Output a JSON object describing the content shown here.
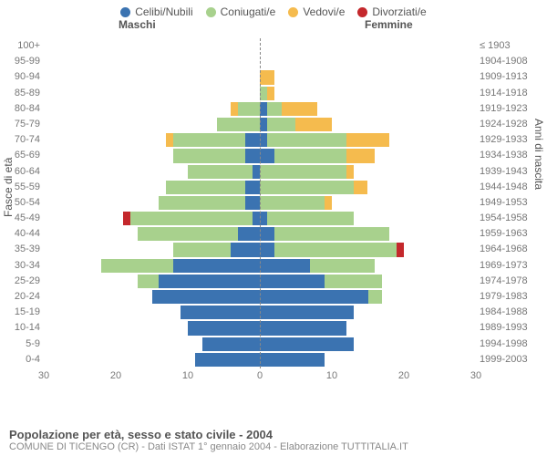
{
  "legend": [
    {
      "label": "Celibi/Nubili",
      "color": "#3b73b1"
    },
    {
      "label": "Coniugati/e",
      "color": "#a8d18d"
    },
    {
      "label": "Vedovi/e",
      "color": "#f5bb4e"
    },
    {
      "label": "Divorziati/e",
      "color": "#c4282c"
    }
  ],
  "headers": {
    "male": "Maschi",
    "female": "Femmine"
  },
  "axis_titles": {
    "left": "Fasce di età",
    "right": "Anni di nascita"
  },
  "x_axis": {
    "max": 30,
    "ticks": [
      30,
      20,
      10,
      0,
      10,
      20,
      30
    ],
    "signed": [
      -30,
      -20,
      -10,
      0,
      10,
      20,
      30
    ]
  },
  "colors": {
    "celibi": "#3b73b1",
    "coniugati": "#a8d18d",
    "vedovi": "#f5bb4e",
    "divorziati": "#c4282c",
    "centerline": "#888888",
    "text": "#555555",
    "subtext": "#888888",
    "bg": "#ffffff"
  },
  "footer": {
    "title": "Popolazione per età, sesso e stato civile - 2004",
    "sub": "COMUNE DI TICENGO (CR) - Dati ISTAT 1° gennaio 2004 - Elaborazione TUTTITALIA.IT"
  },
  "rows": [
    {
      "age": "100+",
      "year": "≤ 1903",
      "m": {
        "c": 0,
        "k": 0,
        "v": 0,
        "d": 0
      },
      "f": {
        "c": 0,
        "k": 0,
        "v": 0,
        "d": 0
      }
    },
    {
      "age": "95-99",
      "year": "1904-1908",
      "m": {
        "c": 0,
        "k": 0,
        "v": 0,
        "d": 0
      },
      "f": {
        "c": 0,
        "k": 0,
        "v": 0,
        "d": 0
      }
    },
    {
      "age": "90-94",
      "year": "1909-1913",
      "m": {
        "c": 0,
        "k": 0,
        "v": 0,
        "d": 0
      },
      "f": {
        "c": 0,
        "k": 0,
        "v": 2,
        "d": 0
      }
    },
    {
      "age": "85-89",
      "year": "1914-1918",
      "m": {
        "c": 0,
        "k": 0,
        "v": 0,
        "d": 0
      },
      "f": {
        "c": 0,
        "k": 1,
        "v": 1,
        "d": 0
      }
    },
    {
      "age": "80-84",
      "year": "1919-1923",
      "m": {
        "c": 0,
        "k": 3,
        "v": 1,
        "d": 0
      },
      "f": {
        "c": 1,
        "k": 2,
        "v": 5,
        "d": 0
      }
    },
    {
      "age": "75-79",
      "year": "1924-1928",
      "m": {
        "c": 0,
        "k": 6,
        "v": 0,
        "d": 0
      },
      "f": {
        "c": 1,
        "k": 4,
        "v": 5,
        "d": 0
      }
    },
    {
      "age": "70-74",
      "year": "1929-1933",
      "m": {
        "c": 2,
        "k": 10,
        "v": 1,
        "d": 0
      },
      "f": {
        "c": 1,
        "k": 11,
        "v": 6,
        "d": 0
      }
    },
    {
      "age": "65-69",
      "year": "1934-1938",
      "m": {
        "c": 2,
        "k": 10,
        "v": 0,
        "d": 0
      },
      "f": {
        "c": 2,
        "k": 10,
        "v": 4,
        "d": 0
      }
    },
    {
      "age": "60-64",
      "year": "1939-1943",
      "m": {
        "c": 1,
        "k": 9,
        "v": 0,
        "d": 0
      },
      "f": {
        "c": 0,
        "k": 12,
        "v": 1,
        "d": 0
      }
    },
    {
      "age": "55-59",
      "year": "1944-1948",
      "m": {
        "c": 2,
        "k": 11,
        "v": 0,
        "d": 0
      },
      "f": {
        "c": 0,
        "k": 13,
        "v": 2,
        "d": 0
      }
    },
    {
      "age": "50-54",
      "year": "1949-1953",
      "m": {
        "c": 2,
        "k": 12,
        "v": 0,
        "d": 0
      },
      "f": {
        "c": 0,
        "k": 9,
        "v": 1,
        "d": 0
      }
    },
    {
      "age": "45-49",
      "year": "1954-1958",
      "m": {
        "c": 1,
        "k": 17,
        "v": 0,
        "d": 1
      },
      "f": {
        "c": 1,
        "k": 12,
        "v": 0,
        "d": 0
      }
    },
    {
      "age": "40-44",
      "year": "1959-1963",
      "m": {
        "c": 3,
        "k": 14,
        "v": 0,
        "d": 0
      },
      "f": {
        "c": 2,
        "k": 16,
        "v": 0,
        "d": 0
      }
    },
    {
      "age": "35-39",
      "year": "1964-1968",
      "m": {
        "c": 4,
        "k": 8,
        "v": 0,
        "d": 0
      },
      "f": {
        "c": 2,
        "k": 17,
        "v": 0,
        "d": 1
      }
    },
    {
      "age": "30-34",
      "year": "1969-1973",
      "m": {
        "c": 12,
        "k": 10,
        "v": 0,
        "d": 0
      },
      "f": {
        "c": 7,
        "k": 9,
        "v": 0,
        "d": 0
      }
    },
    {
      "age": "25-29",
      "year": "1974-1978",
      "m": {
        "c": 14,
        "k": 3,
        "v": 0,
        "d": 0
      },
      "f": {
        "c": 9,
        "k": 8,
        "v": 0,
        "d": 0
      }
    },
    {
      "age": "20-24",
      "year": "1979-1983",
      "m": {
        "c": 15,
        "k": 0,
        "v": 0,
        "d": 0
      },
      "f": {
        "c": 15,
        "k": 2,
        "v": 0,
        "d": 0
      }
    },
    {
      "age": "15-19",
      "year": "1984-1988",
      "m": {
        "c": 11,
        "k": 0,
        "v": 0,
        "d": 0
      },
      "f": {
        "c": 13,
        "k": 0,
        "v": 0,
        "d": 0
      }
    },
    {
      "age": "10-14",
      "year": "1989-1993",
      "m": {
        "c": 10,
        "k": 0,
        "v": 0,
        "d": 0
      },
      "f": {
        "c": 12,
        "k": 0,
        "v": 0,
        "d": 0
      }
    },
    {
      "age": "5-9",
      "year": "1994-1998",
      "m": {
        "c": 8,
        "k": 0,
        "v": 0,
        "d": 0
      },
      "f": {
        "c": 13,
        "k": 0,
        "v": 0,
        "d": 0
      }
    },
    {
      "age": "0-4",
      "year": "1999-2003",
      "m": {
        "c": 9,
        "k": 0,
        "v": 0,
        "d": 0
      },
      "f": {
        "c": 9,
        "k": 0,
        "v": 0,
        "d": 0
      }
    }
  ]
}
